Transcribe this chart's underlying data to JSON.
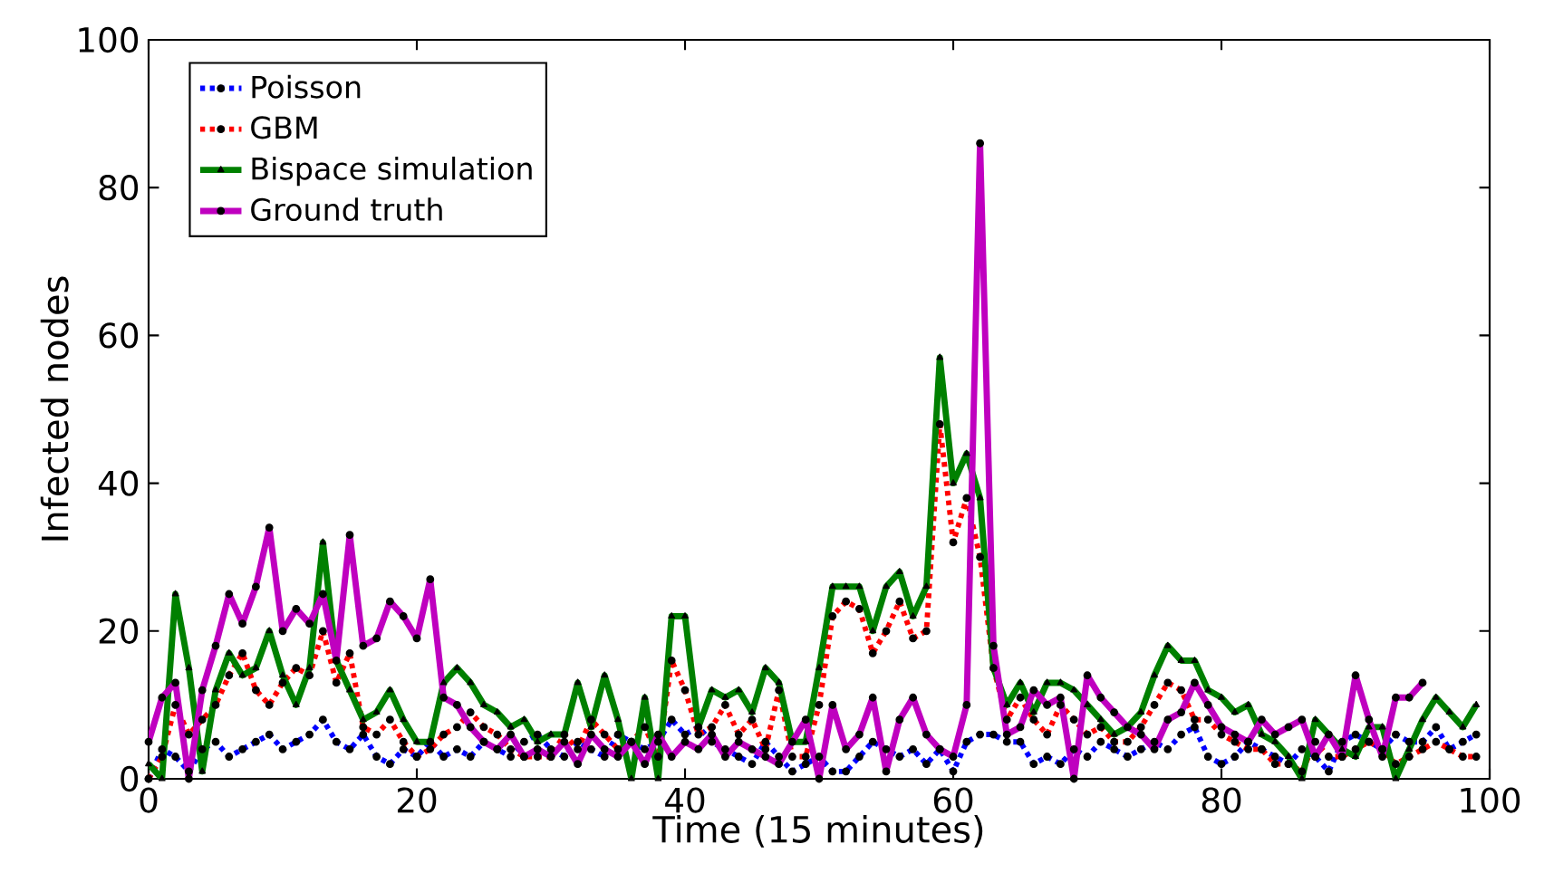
{
  "chart_data": {
    "type": "line",
    "xlabel": "Time (15 minutes)",
    "ylabel": "Infected nodes",
    "xlim": [
      0,
      100
    ],
    "ylim": [
      0,
      100
    ],
    "xticks": [
      0,
      20,
      40,
      60,
      80,
      100
    ],
    "yticks": [
      0,
      20,
      40,
      60,
      80,
      100
    ],
    "grid": false,
    "legend": "top left",
    "x": [
      0,
      1,
      2,
      3,
      4,
      5,
      6,
      7,
      8,
      9,
      10,
      11,
      12,
      13,
      14,
      15,
      16,
      17,
      18,
      19,
      20,
      21,
      22,
      23,
      24,
      25,
      26,
      27,
      28,
      29,
      30,
      31,
      32,
      33,
      34,
      35,
      36,
      37,
      38,
      39,
      40,
      41,
      42,
      43,
      44,
      45,
      46,
      47,
      48,
      49,
      50,
      51,
      52,
      53,
      54,
      55,
      56,
      57,
      58,
      59,
      60,
      61,
      62,
      63,
      64,
      65,
      66,
      67,
      68,
      69,
      70,
      71,
      72,
      73,
      74,
      75,
      76,
      77,
      78,
      79,
      80,
      81,
      82,
      83,
      84,
      85,
      86,
      87,
      88,
      89,
      90,
      91,
      92,
      93,
      94,
      95,
      96,
      97,
      98,
      99
    ],
    "series": [
      {
        "name": "Poisson",
        "color": "#0000ff",
        "line_style": "dotted",
        "marker": "circle",
        "values": [
          0,
          4,
          3,
          1,
          4,
          5,
          3,
          4,
          5,
          6,
          4,
          5,
          6,
          8,
          5,
          4,
          6,
          3,
          2,
          4,
          3,
          5,
          3,
          4,
          3,
          5,
          4,
          3,
          5,
          6,
          4,
          3,
          5,
          4,
          3,
          6,
          5,
          4,
          5,
          8,
          6,
          7,
          5,
          4,
          3,
          2,
          5,
          3,
          1,
          2,
          3,
          1,
          1,
          3,
          5,
          4,
          3,
          4,
          2,
          4,
          1,
          5,
          6,
          6,
          5,
          5,
          2,
          3,
          2,
          4,
          3,
          5,
          4,
          3,
          4,
          5,
          4,
          6,
          7,
          3,
          2,
          3,
          5,
          4,
          3,
          2,
          4,
          3,
          1,
          5,
          6,
          5,
          4,
          6,
          5,
          5,
          7,
          4,
          5,
          6
        ]
      },
      {
        "name": "GBM",
        "color": "#ff0000",
        "line_style": "dotted",
        "marker": "circle",
        "values": [
          0,
          3,
          10,
          6,
          8,
          10,
          14,
          17,
          12,
          10,
          13,
          15,
          14,
          20,
          13,
          17,
          7,
          6,
          8,
          5,
          3,
          4,
          6,
          7,
          9,
          7,
          6,
          4,
          3,
          3,
          3,
          6,
          4,
          8,
          6,
          4,
          5,
          7,
          3,
          16,
          12,
          6,
          7,
          10,
          6,
          8,
          4,
          12,
          3,
          3,
          10,
          22,
          24,
          23,
          17,
          20,
          24,
          19,
          20,
          48,
          32,
          38,
          30,
          15,
          8,
          11,
          8,
          6,
          10,
          8,
          6,
          7,
          5,
          5,
          7,
          10,
          13,
          12,
          8,
          8,
          6,
          5,
          4,
          4,
          2,
          2,
          1,
          5,
          3,
          3,
          4,
          5,
          4,
          2,
          3,
          4,
          5,
          4,
          3,
          3
        ]
      },
      {
        "name": "Bispace simulation",
        "color": "#008000",
        "line_style": "solid",
        "marker": "triangle",
        "values": [
          2,
          0,
          25,
          15,
          1,
          12,
          17,
          14,
          15,
          20,
          14,
          10,
          15,
          32,
          16,
          12,
          8,
          9,
          12,
          8,
          5,
          5,
          13,
          15,
          13,
          10,
          9,
          7,
          8,
          5,
          6,
          6,
          13,
          7,
          14,
          8,
          0,
          11,
          0,
          22,
          22,
          7,
          12,
          11,
          12,
          9,
          15,
          13,
          5,
          5,
          15,
          26,
          26,
          26,
          20,
          26,
          28,
          22,
          26,
          57,
          40,
          44,
          38,
          15,
          10,
          13,
          9,
          13,
          13,
          12,
          10,
          8,
          6,
          7,
          9,
          14,
          18,
          16,
          16,
          12,
          11,
          9,
          10,
          6,
          5,
          3,
          0,
          8,
          6,
          4,
          3,
          7,
          7,
          0,
          4,
          8,
          11,
          9,
          7,
          10
        ]
      },
      {
        "name": "Ground truth",
        "color": "#bf00bf",
        "line_style": "solid",
        "marker": "circle",
        "values": [
          5,
          11,
          13,
          0,
          12,
          18,
          25,
          21,
          26,
          34,
          20,
          23,
          21,
          25,
          16,
          33,
          18,
          19,
          24,
          22,
          19,
          27,
          11,
          10,
          7,
          5,
          4,
          6,
          3,
          4,
          3,
          5,
          2,
          6,
          4,
          3,
          5,
          2,
          6,
          3,
          5,
          4,
          6,
          3,
          5,
          4,
          3,
          2,
          5,
          8,
          0,
          10,
          4,
          6,
          11,
          1,
          8,
          11,
          6,
          4,
          3,
          10,
          86,
          18,
          6,
          7,
          12,
          10,
          11,
          0,
          14,
          11,
          9,
          7,
          6,
          4,
          8,
          9,
          13,
          10,
          7,
          6,
          5,
          8,
          6,
          7,
          8,
          3,
          6,
          3,
          14,
          8,
          3,
          11,
          11,
          13,
          null,
          null,
          null,
          null
        ]
      }
    ]
  }
}
